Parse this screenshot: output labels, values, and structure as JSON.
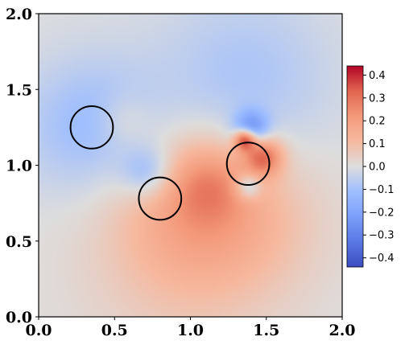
{
  "chart_data": {
    "type": "heatmap",
    "title": "",
    "xlabel": "",
    "ylabel": "",
    "xlim": [
      0.0,
      2.0
    ],
    "ylim": [
      0.0,
      2.0
    ],
    "x_ticks": [
      "0.0",
      "0.5",
      "1.0",
      "1.5",
      "2.0"
    ],
    "y_ticks": [
      "0.0",
      "0.5",
      "1.0",
      "1.5",
      "2.0"
    ],
    "colormap": "coolwarm",
    "colorbar": {
      "range": [
        -0.44,
        0.44
      ],
      "ticks": [
        "0.4",
        "0.3",
        "0.2",
        "0.1",
        "0.0",
        "−0.1",
        "−0.2",
        "−0.3",
        "−0.4"
      ],
      "tick_values": [
        0.4,
        0.3,
        0.2,
        0.1,
        0.0,
        -0.1,
        -0.2,
        -0.3,
        -0.4
      ],
      "placement": "right"
    },
    "grid": false,
    "circles": [
      {
        "cx": 0.35,
        "cy": 1.25,
        "r": 0.14
      },
      {
        "cx": 0.8,
        "cy": 0.78,
        "r": 0.14
      },
      {
        "cx": 1.38,
        "cy": 1.01,
        "r": 0.14
      }
    ],
    "field_features": [
      {
        "x": 0.35,
        "y": 1.25,
        "value": -0.12,
        "spread": 0.32
      },
      {
        "x": 0.56,
        "y": 1.3,
        "value": 0.06,
        "spread": 0.12
      },
      {
        "x": 0.72,
        "y": 0.95,
        "value": -0.14,
        "spread": 0.12
      },
      {
        "x": 0.98,
        "y": 0.75,
        "value": 0.12,
        "spread": 0.35
      },
      {
        "x": 0.95,
        "y": 0.35,
        "value": 0.07,
        "spread": 0.45
      },
      {
        "x": 1.4,
        "y": 0.65,
        "value": 0.08,
        "spread": 0.35
      },
      {
        "x": 1.35,
        "y": 1.55,
        "value": -0.09,
        "spread": 0.4
      },
      {
        "x": 1.4,
        "y": 1.24,
        "value": -0.25,
        "spread": 0.08
      },
      {
        "x": 1.36,
        "y": 1.17,
        "value": 0.4,
        "spread": 0.05
      },
      {
        "x": 1.48,
        "y": 1.06,
        "value": 0.28,
        "spread": 0.09
      },
      {
        "x": 1.38,
        "y": 0.86,
        "value": -0.18,
        "spread": 0.06
      },
      {
        "x": 1.12,
        "y": 0.88,
        "value": 0.12,
        "spread": 0.18
      }
    ],
    "colors": {
      "circle_stroke": "#000000",
      "frame": "#000000"
    }
  }
}
